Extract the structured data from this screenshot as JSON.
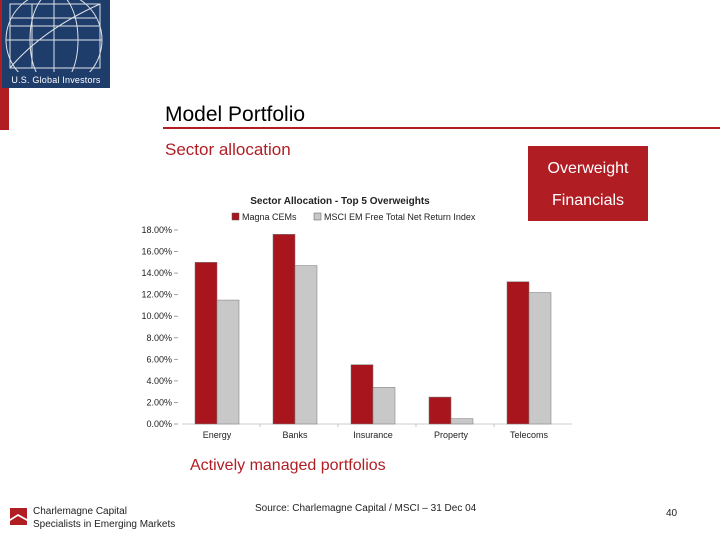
{
  "logo": {
    "text": "U.S. Global Investors"
  },
  "slide": {
    "title": "Model Portfolio",
    "subtitle": "Sector allocation",
    "callout_line1": "Overweight",
    "callout_line2": "Financials",
    "bottom_caption": "Actively managed portfolios"
  },
  "footer": {
    "company": "Charlemagne Capital",
    "tagline": "Specialists in Emerging Markets",
    "source": "Source: Charlemagne Capital / MSCI – 31 Dec 04",
    "page_number": "40"
  },
  "colors": {
    "accent": "#b01e24",
    "series1": "#a8151c",
    "series2": "#c8c8c8"
  },
  "chart_data": {
    "type": "bar",
    "title": "Sector Allocation - Top 5 Overweights",
    "categories": [
      "Energy",
      "Banks",
      "Insurance",
      "Property",
      "Telecoms"
    ],
    "series": [
      {
        "name": "Magna CEMs",
        "values": [
          15.0,
          17.6,
          5.5,
          2.5,
          13.2
        ]
      },
      {
        "name": "MSCI EM Free Total Net Return Index",
        "values": [
          11.5,
          14.7,
          3.4,
          0.5,
          12.2
        ]
      }
    ],
    "ylim": [
      0,
      18
    ],
    "yticks": [
      "0.00%",
      "2.00%",
      "4.00%",
      "6.00%",
      "8.00%",
      "10.00%",
      "12.00%",
      "14.00%",
      "16.00%",
      "18.00%"
    ],
    "legend_position": "top",
    "grid": false
  }
}
